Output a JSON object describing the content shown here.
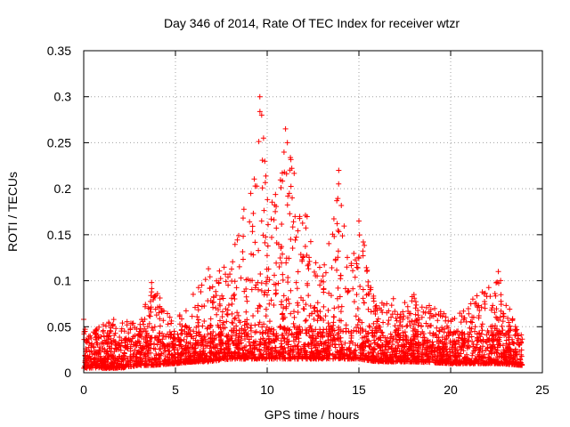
{
  "chart_data": {
    "type": "scatter",
    "title": "Day 346 of 2014, Rate Of TEC Index for receiver wtzr",
    "xlabel": "GPS time / hours",
    "ylabel": "ROTI / TECUs",
    "xlim": [
      0,
      25
    ],
    "ylim": [
      0,
      0.35
    ],
    "x_ticks": [
      0,
      5,
      10,
      15,
      20,
      25
    ],
    "x_tick_labels": [
      "0",
      "5",
      "10",
      "15",
      "20",
      "25"
    ],
    "y_ticks": [
      0,
      0.05,
      0.1,
      0.15,
      0.2,
      0.25,
      0.3,
      0.35
    ],
    "y_tick_labels": [
      "0",
      "0.05",
      "0.1",
      "0.15",
      "0.2",
      "0.25",
      "0.3",
      "0.35"
    ],
    "grid": true,
    "marker": "+",
    "series": [
      {
        "name": "ROTI",
        "color": "#ff0000",
        "x_range": [
          0,
          23.9
        ],
        "envelope": [
          {
            "x": 0,
            "lo": 0.005,
            "hi": 0.05
          },
          {
            "x": 1,
            "lo": 0.005,
            "hi": 0.055
          },
          {
            "x": 2,
            "lo": 0.005,
            "hi": 0.06
          },
          {
            "x": 3,
            "lo": 0.008,
            "hi": 0.055
          },
          {
            "x": 3.7,
            "lo": 0.008,
            "hi": 0.095
          },
          {
            "x": 5,
            "lo": 0.01,
            "hi": 0.06
          },
          {
            "x": 6,
            "lo": 0.012,
            "hi": 0.09
          },
          {
            "x": 6.8,
            "lo": 0.012,
            "hi": 0.11
          },
          {
            "x": 8,
            "lo": 0.015,
            "hi": 0.12
          },
          {
            "x": 8.5,
            "lo": 0.015,
            "hi": 0.16
          },
          {
            "x": 9,
            "lo": 0.015,
            "hi": 0.2
          },
          {
            "x": 9.6,
            "lo": 0.015,
            "hi": 0.3
          },
          {
            "x": 10.2,
            "lo": 0.015,
            "hi": 0.18
          },
          {
            "x": 11,
            "lo": 0.015,
            "hi": 0.265
          },
          {
            "x": 11.5,
            "lo": 0.015,
            "hi": 0.22
          },
          {
            "x": 12.3,
            "lo": 0.015,
            "hi": 0.165
          },
          {
            "x": 13,
            "lo": 0.015,
            "hi": 0.11
          },
          {
            "x": 13.9,
            "lo": 0.015,
            "hi": 0.22
          },
          {
            "x": 14.5,
            "lo": 0.015,
            "hi": 0.12
          },
          {
            "x": 15,
            "lo": 0.015,
            "hi": 0.165
          },
          {
            "x": 16,
            "lo": 0.012,
            "hi": 0.08
          },
          {
            "x": 18,
            "lo": 0.012,
            "hi": 0.085
          },
          {
            "x": 20,
            "lo": 0.01,
            "hi": 0.06
          },
          {
            "x": 21,
            "lo": 0.01,
            "hi": 0.07
          },
          {
            "x": 21.5,
            "lo": 0.01,
            "hi": 0.095
          },
          {
            "x": 22.6,
            "lo": 0.01,
            "hi": 0.11
          },
          {
            "x": 23.9,
            "lo": 0.008,
            "hi": 0.04
          }
        ],
        "highlights": [
          {
            "x": 9.6,
            "y": 0.3
          },
          {
            "x": 9.7,
            "y": 0.28
          },
          {
            "x": 9.8,
            "y": 0.255
          },
          {
            "x": 11.0,
            "y": 0.265
          },
          {
            "x": 11.1,
            "y": 0.25
          },
          {
            "x": 13.9,
            "y": 0.22
          },
          {
            "x": 15.0,
            "y": 0.165
          },
          {
            "x": 22.6,
            "y": 0.11
          },
          {
            "x": 3.7,
            "y": 0.098
          },
          {
            "x": 6.8,
            "y": 0.113
          },
          {
            "x": 18.0,
            "y": 0.085
          },
          {
            "x": 0.0,
            "y": 0.058
          }
        ]
      }
    ]
  }
}
